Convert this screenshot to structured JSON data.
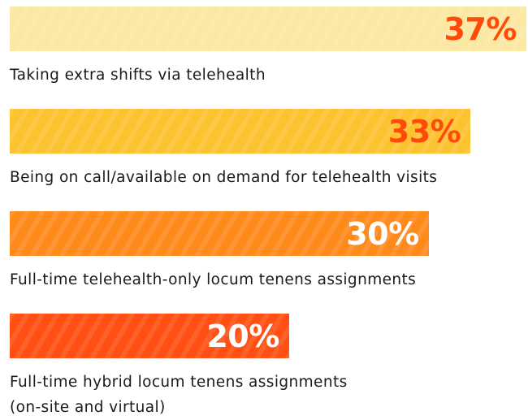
{
  "chart_data": {
    "type": "bar",
    "orientation": "horizontal",
    "categories": [
      "Taking extra shifts via telehealth",
      "Being on call/available on demand for telehealth visits",
      "Full-time telehealth-only locum tenens assignments",
      "Full-time hybrid locum tenens assignments\n(on-site and virtual)"
    ],
    "values": [
      37,
      33,
      30,
      20
    ],
    "value_labels": [
      "37%",
      "33%",
      "30%",
      "20%"
    ],
    "colors": [
      "#fbe8a2",
      "#fdc230",
      "#ff8a1c",
      "#ff4f12"
    ],
    "value_label_colors": [
      "#ff4a0a",
      "#ff4a0a",
      "#ffffff",
      "#ffffff"
    ],
    "xlim": [
      0,
      37
    ]
  }
}
